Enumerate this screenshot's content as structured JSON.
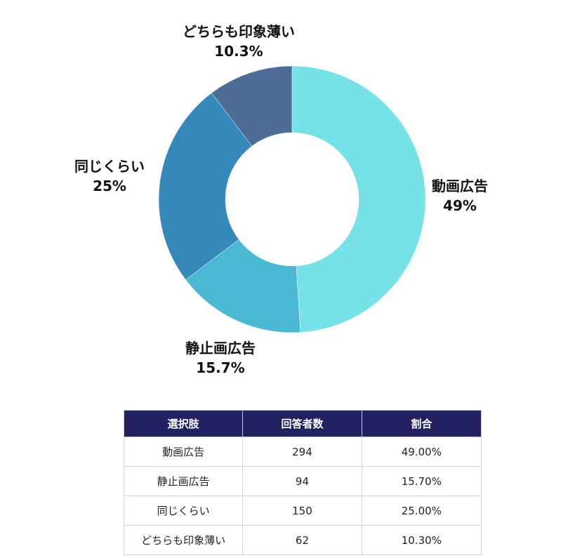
{
  "chart_data": {
    "type": "pie",
    "donut": true,
    "start": "top",
    "direction": "clockwise",
    "categories": [
      "動画広告",
      "静止画広告",
      "同じくらい",
      "どちらも印象薄い"
    ],
    "values": [
      49,
      15.7,
      25,
      10.3
    ],
    "value_labels": [
      "49%",
      "15.7%",
      "25%",
      "10.3%"
    ],
    "colors": [
      "#76E2E8",
      "#4BB8D4",
      "#3489BA",
      "#4F6C96"
    ],
    "legend": "none"
  },
  "table": {
    "header_color": "#232160",
    "headers": [
      "選択肢",
      "回答者数",
      "割合"
    ],
    "rows": [
      [
        "動画広告",
        "294",
        "49.00%"
      ],
      [
        "静止画広告",
        "94",
        "15.70%"
      ],
      [
        "同じくらい",
        "150",
        "25.00%"
      ],
      [
        "どちらも印象薄い",
        "62",
        "10.30%"
      ]
    ]
  }
}
